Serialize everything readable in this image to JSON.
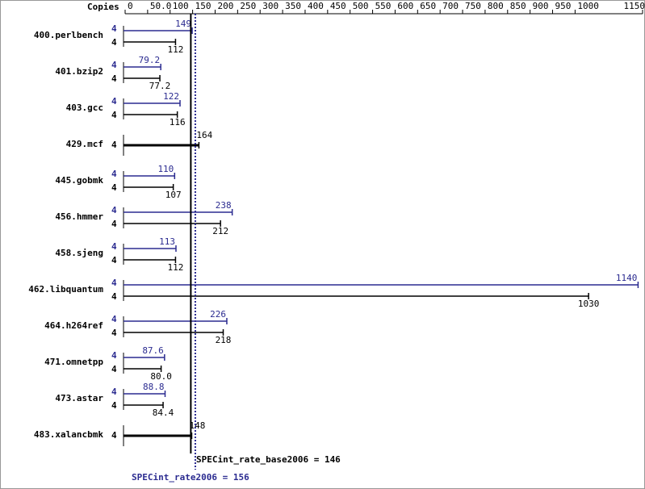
{
  "chart_data": {
    "type": "bar",
    "orientation": "horizontal",
    "copies_label": "Copies",
    "categories": [
      "400.perlbench",
      "401.bzip2",
      "403.gcc",
      "429.mcf",
      "445.gobmk",
      "456.hmmer",
      "458.sjeng",
      "462.libquantum",
      "464.h264ref",
      "471.omnetpp",
      "473.astar",
      "483.xalancbmk"
    ],
    "series": [
      {
        "color": "#2b2b90",
        "copies": [
          4,
          4,
          4,
          null,
          4,
          4,
          4,
          4,
          4,
          4,
          4,
          null
        ],
        "values": [
          149,
          79.2,
          122,
          null,
          110,
          238,
          113,
          1140,
          226,
          87.6,
          88.8,
          null
        ]
      },
      {
        "color": "#000000",
        "copies": [
          4,
          4,
          4,
          4,
          4,
          4,
          4,
          4,
          4,
          4,
          4,
          4
        ],
        "values": [
          112,
          77.2,
          116,
          164,
          107,
          212,
          112,
          1030,
          218,
          80.0,
          84.4,
          148
        ],
        "value_labels": [
          "112",
          "77.2",
          "116",
          "164",
          "107",
          "212",
          "112",
          "1030",
          "218",
          "80.0",
          "84.4",
          "148"
        ]
      }
    ],
    "xlim": [
      0,
      1150
    ],
    "xticks": [
      0,
      {
        "value": 50,
        "label": "50.0"
      },
      100,
      150,
      200,
      250,
      300,
      350,
      400,
      450,
      500,
      550,
      600,
      650,
      700,
      750,
      800,
      850,
      900,
      950,
      1000,
      1150
    ],
    "reference_lines": [
      {
        "label": "SPECint_rate_base2006 = 146",
        "value": 146,
        "color": "#000000",
        "dashed": false
      },
      {
        "label": "SPECint_rate2006 = 156",
        "value": 156,
        "color": "#2b2b90",
        "dashed": true
      }
    ]
  }
}
